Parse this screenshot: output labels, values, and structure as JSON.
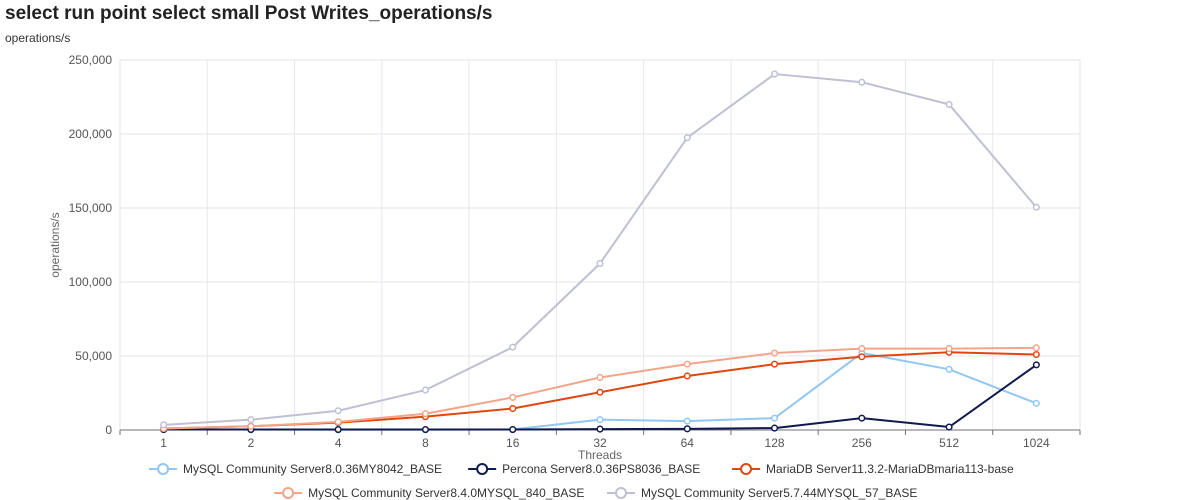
{
  "header": {
    "title": "select run point select small Post Writes_operations/s",
    "subtitle": "operations/s"
  },
  "chart_data": {
    "type": "line",
    "title": "select run point select small Post Writes_operations/s",
    "xlabel": "Threads",
    "ylabel": "operations/s",
    "categories": [
      "1",
      "2",
      "4",
      "8",
      "16",
      "32",
      "64",
      "128",
      "256",
      "512",
      "1024"
    ],
    "ylim": [
      0,
      250000
    ],
    "yticks": [
      "0",
      "50,000",
      "100,000",
      "150,000",
      "200,000",
      "250,000"
    ],
    "ytick_values": [
      0,
      50000,
      100000,
      150000,
      200000,
      250000
    ],
    "grid": true,
    "legend_position": "bottom",
    "series": [
      {
        "name": "MySQL Community Server8.0.36MY8042_BASE",
        "color": "#91c7f5",
        "values": [
          500,
          300,
          200,
          200,
          300,
          7000,
          6000,
          8000,
          52000,
          41000,
          18000
        ]
      },
      {
        "name": "Percona Server8.0.36PS8036_BASE",
        "color": "#101a4e",
        "values": [
          300,
          300,
          300,
          300,
          300,
          600,
          800,
          1300,
          8000,
          2000,
          44000
        ]
      },
      {
        "name": "MariaDB Server11.3.2-MariaDBmaria113-base",
        "color": "#e0470f",
        "values": [
          1000,
          2500,
          5000,
          9000,
          14500,
          25500,
          36500,
          44500,
          49500,
          52500,
          51000
        ]
      },
      {
        "name": "MySQL Community Server8.4.0MYSQL_840_BASE",
        "color": "#f4a48a",
        "values": [
          1000,
          2500,
          5500,
          11000,
          22000,
          35500,
          44500,
          52000,
          55000,
          55000,
          55500
        ]
      },
      {
        "name": "MySQL Community Server5.7.44MYSQL_57_BASE",
        "color": "#bfc0d3",
        "values": [
          3500,
          7000,
          13000,
          27000,
          56000,
          112500,
          197500,
          240500,
          235000,
          220000,
          150500
        ]
      }
    ]
  }
}
